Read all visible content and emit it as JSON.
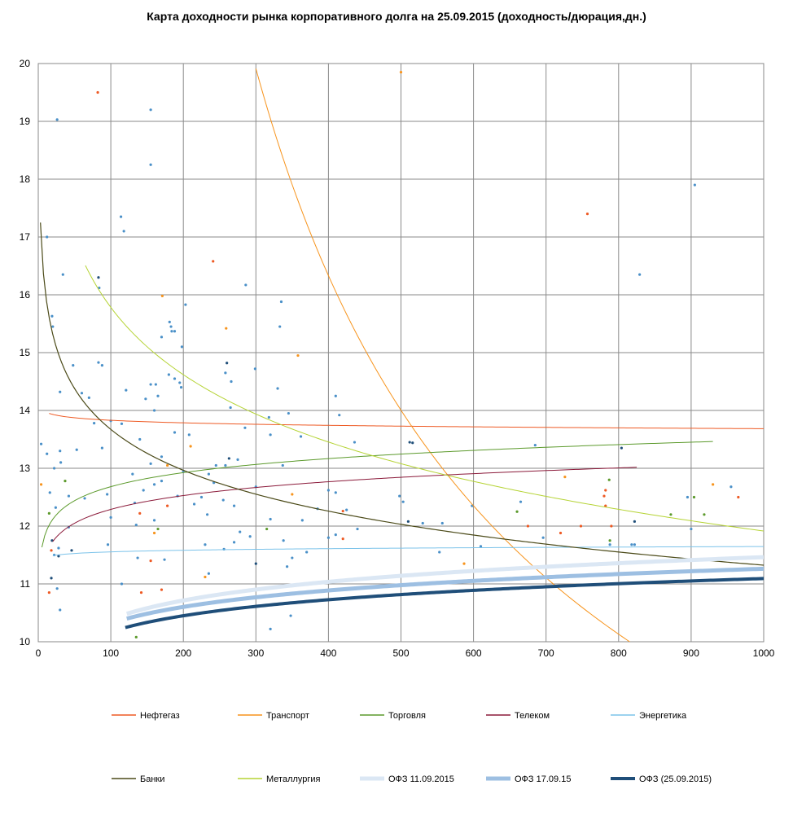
{
  "chart_data": {
    "type": "scatter",
    "title": "Карта доходности рынка корпоративного долга на 25.09.2015 (доходность/дюрация,дн.)",
    "xlabel": "",
    "ylabel": "",
    "xlim": [
      0,
      1000
    ],
    "ylim": [
      10,
      20
    ],
    "x_ticks": [
      0,
      100,
      200,
      300,
      400,
      500,
      600,
      700,
      800,
      900,
      1000
    ],
    "y_ticks": [
      10,
      11,
      12,
      13,
      14,
      15,
      16,
      17,
      18,
      19,
      20
    ],
    "grid": true,
    "legend_position": "bottom",
    "series": [
      {
        "name": "Нефтегаз",
        "color": "#ee5a24",
        "width": 1,
        "trend": "log",
        "x_range": [
          15,
          1000
        ],
        "a": 14.12,
        "b": -0.063
      },
      {
        "name": "Транспорт",
        "color": "#f7941d",
        "width": 1,
        "trend": "power",
        "x_range": [
          300,
          1000
        ],
        "a": 1013.6,
        "b": -0.689
      },
      {
        "name": "Торговля",
        "color": "#5c9a2c",
        "width": 1,
        "trend": "log",
        "x_range": [
          5,
          930
        ],
        "a": 11.07,
        "b": 0.35
      },
      {
        "name": "Телеком",
        "color": "#8b1a3a",
        "width": 1,
        "trend": "log",
        "x_range": [
          20,
          825
        ],
        "a": 10.7,
        "b": 0.345
      },
      {
        "name": "Энергетика",
        "color": "#7cc3ea",
        "width": 1,
        "trend": "log",
        "x_range": [
          20,
          1000
        ],
        "a": 11.37,
        "b": 0.04
      },
      {
        "name": "Банки",
        "color": "#4b4a18",
        "width": 1.2,
        "trend": "log",
        "x_range": [
          3,
          1000
        ],
        "a": 18.37,
        "b": -1.02
      },
      {
        "name": "Металлургия",
        "color": "#b5d334",
        "width": 1,
        "trend": "log",
        "x_range": [
          65,
          1000
        ],
        "a": 23.52,
        "b": -1.68
      },
      {
        "name": "ОФЗ 11.09.2015",
        "color": "#dbe7f4",
        "width": 5,
        "trend": "log",
        "x_range": [
          122,
          1000
        ],
        "a": 8.25,
        "b": 0.465
      },
      {
        "name": "ОФЗ 17.09.15",
        "color": "#9dbfe2",
        "width": 5,
        "trend": "log",
        "x_range": [
          122,
          1000
        ],
        "a": 8.43,
        "b": 0.41
      },
      {
        "name": "ОФЗ (25.09.2015)",
        "color": "#1f4e79",
        "width": 4,
        "trend": "log",
        "x_range": [
          120,
          1000
        ],
        "a": 8.33,
        "b": 0.4
      }
    ],
    "points": [
      {
        "x": 82,
        "y": 19.5,
        "color": "#ee5a24"
      },
      {
        "x": 500,
        "y": 19.85,
        "color": "#f7941d"
      },
      {
        "x": 26,
        "y": 19.03,
        "color": "#4a90c8"
      },
      {
        "x": 155,
        "y": 19.2,
        "color": "#4a90c8"
      },
      {
        "x": 155,
        "y": 18.25,
        "color": "#4a90c8"
      },
      {
        "x": 905,
        "y": 17.9,
        "color": "#4a90c8"
      },
      {
        "x": 757,
        "y": 17.4,
        "color": "#ee5a24"
      },
      {
        "x": 114,
        "y": 17.35,
        "color": "#4a90c8"
      },
      {
        "x": 118,
        "y": 17.1,
        "color": "#4a90c8"
      },
      {
        "x": 12,
        "y": 17.0,
        "color": "#4a90c8"
      },
      {
        "x": 241,
        "y": 16.58,
        "color": "#ee5a24"
      },
      {
        "x": 34,
        "y": 16.35,
        "color": "#4a90c8"
      },
      {
        "x": 83,
        "y": 16.3,
        "color": "#1f4e79"
      },
      {
        "x": 829,
        "y": 16.35,
        "color": "#4a90c8"
      },
      {
        "x": 286,
        "y": 16.17,
        "color": "#4a90c8"
      },
      {
        "x": 84,
        "y": 16.12,
        "color": "#4a90c8"
      },
      {
        "x": 171,
        "y": 15.98,
        "color": "#f7941d"
      },
      {
        "x": 335,
        "y": 15.88,
        "color": "#4a90c8"
      },
      {
        "x": 203,
        "y": 15.83,
        "color": "#4a90c8"
      },
      {
        "x": 19,
        "y": 15.63,
        "color": "#4a90c8"
      },
      {
        "x": 20,
        "y": 15.45,
        "color": "#4a90c8"
      },
      {
        "x": 181,
        "y": 15.53,
        "color": "#4a90c8"
      },
      {
        "x": 183,
        "y": 15.45,
        "color": "#4a90c8"
      },
      {
        "x": 333,
        "y": 15.45,
        "color": "#4a90c8"
      },
      {
        "x": 259,
        "y": 15.42,
        "color": "#f7941d"
      },
      {
        "x": 184,
        "y": 15.37,
        "color": "#4a90c8"
      },
      {
        "x": 188,
        "y": 15.37,
        "color": "#4a90c8"
      },
      {
        "x": 170,
        "y": 15.27,
        "color": "#4a90c8"
      },
      {
        "x": 198,
        "y": 15.1,
        "color": "#4a90c8"
      },
      {
        "x": 358,
        "y": 14.95,
        "color": "#f7941d"
      },
      {
        "x": 83,
        "y": 14.83,
        "color": "#4a90c8"
      },
      {
        "x": 88,
        "y": 14.78,
        "color": "#4a90c8"
      },
      {
        "x": 260,
        "y": 14.82,
        "color": "#1f4e79"
      },
      {
        "x": 48,
        "y": 14.78,
        "color": "#4a90c8"
      },
      {
        "x": 299,
        "y": 14.72,
        "color": "#4a90c8"
      },
      {
        "x": 258,
        "y": 14.65,
        "color": "#4a90c8"
      },
      {
        "x": 180,
        "y": 14.62,
        "color": "#4a90c8"
      },
      {
        "x": 188,
        "y": 14.55,
        "color": "#4a90c8"
      },
      {
        "x": 195,
        "y": 14.48,
        "color": "#4a90c8"
      },
      {
        "x": 155,
        "y": 14.45,
        "color": "#4a90c8"
      },
      {
        "x": 162,
        "y": 14.45,
        "color": "#4a90c8"
      },
      {
        "x": 266,
        "y": 14.5,
        "color": "#4a90c8"
      },
      {
        "x": 197,
        "y": 14.4,
        "color": "#4a90c8"
      },
      {
        "x": 121,
        "y": 14.35,
        "color": "#4a90c8"
      },
      {
        "x": 30,
        "y": 14.32,
        "color": "#4a90c8"
      },
      {
        "x": 60,
        "y": 14.3,
        "color": "#4a90c8"
      },
      {
        "x": 330,
        "y": 14.38,
        "color": "#4a90c8"
      },
      {
        "x": 165,
        "y": 14.25,
        "color": "#4a90c8"
      },
      {
        "x": 410,
        "y": 14.25,
        "color": "#4a90c8"
      },
      {
        "x": 70,
        "y": 14.22,
        "color": "#4a90c8"
      },
      {
        "x": 148,
        "y": 14.2,
        "color": "#4a90c8"
      },
      {
        "x": 265,
        "y": 14.05,
        "color": "#4a90c8"
      },
      {
        "x": 160,
        "y": 14.0,
        "color": "#4a90c8"
      },
      {
        "x": 345,
        "y": 13.95,
        "color": "#4a90c8"
      },
      {
        "x": 415,
        "y": 13.92,
        "color": "#4a90c8"
      },
      {
        "x": 318,
        "y": 13.88,
        "color": "#4a90c8"
      },
      {
        "x": 100,
        "y": 13.82,
        "color": "#4a90c8"
      },
      {
        "x": 115,
        "y": 13.77,
        "color": "#4a90c8"
      },
      {
        "x": 77,
        "y": 13.78,
        "color": "#4a90c8"
      },
      {
        "x": 285,
        "y": 13.7,
        "color": "#4a90c8"
      },
      {
        "x": 188,
        "y": 13.62,
        "color": "#4a90c8"
      },
      {
        "x": 208,
        "y": 13.58,
        "color": "#4a90c8"
      },
      {
        "x": 320,
        "y": 13.58,
        "color": "#4a90c8"
      },
      {
        "x": 362,
        "y": 13.55,
        "color": "#4a90c8"
      },
      {
        "x": 140,
        "y": 13.5,
        "color": "#4a90c8"
      },
      {
        "x": 512,
        "y": 13.45,
        "color": "#1f4e79"
      },
      {
        "x": 516,
        "y": 13.44,
        "color": "#1f4e79"
      },
      {
        "x": 436,
        "y": 13.45,
        "color": "#4a90c8"
      },
      {
        "x": 4,
        "y": 13.42,
        "color": "#4a90c8"
      },
      {
        "x": 210,
        "y": 13.38,
        "color": "#f7941d"
      },
      {
        "x": 685,
        "y": 13.4,
        "color": "#4a90c8"
      },
      {
        "x": 804,
        "y": 13.35,
        "color": "#1f4e79"
      },
      {
        "x": 88,
        "y": 13.35,
        "color": "#4a90c8"
      },
      {
        "x": 53,
        "y": 13.32,
        "color": "#4a90c8"
      },
      {
        "x": 30,
        "y": 13.3,
        "color": "#4a90c8"
      },
      {
        "x": 12,
        "y": 13.25,
        "color": "#4a90c8"
      },
      {
        "x": 170,
        "y": 13.2,
        "color": "#4a90c8"
      },
      {
        "x": 263,
        "y": 13.17,
        "color": "#1f4e79"
      },
      {
        "x": 275,
        "y": 13.15,
        "color": "#4a90c8"
      },
      {
        "x": 31,
        "y": 13.1,
        "color": "#4a90c8"
      },
      {
        "x": 155,
        "y": 13.08,
        "color": "#4a90c8"
      },
      {
        "x": 178,
        "y": 13.05,
        "color": "#f7941d"
      },
      {
        "x": 245,
        "y": 13.05,
        "color": "#4a90c8"
      },
      {
        "x": 258,
        "y": 13.05,
        "color": "#4a90c8"
      },
      {
        "x": 337,
        "y": 13.05,
        "color": "#4a90c8"
      },
      {
        "x": 22,
        "y": 13.0,
        "color": "#4a90c8"
      },
      {
        "x": 200,
        "y": 12.95,
        "color": "#4a90c8"
      },
      {
        "x": 130,
        "y": 12.9,
        "color": "#4a90c8"
      },
      {
        "x": 235,
        "y": 12.9,
        "color": "#4a90c8"
      },
      {
        "x": 726,
        "y": 12.85,
        "color": "#f7941d"
      },
      {
        "x": 787,
        "y": 12.8,
        "color": "#5c9a2c"
      },
      {
        "x": 37,
        "y": 12.78,
        "color": "#5c9a2c"
      },
      {
        "x": 170,
        "y": 12.78,
        "color": "#4a90c8"
      },
      {
        "x": 242,
        "y": 12.75,
        "color": "#4a90c8"
      },
      {
        "x": 160,
        "y": 12.72,
        "color": "#4a90c8"
      },
      {
        "x": 930,
        "y": 12.72,
        "color": "#f7941d"
      },
      {
        "x": 4,
        "y": 12.72,
        "color": "#f7941d"
      },
      {
        "x": 955,
        "y": 12.68,
        "color": "#4a90c8"
      },
      {
        "x": 300,
        "y": 12.68,
        "color": "#4a90c8"
      },
      {
        "x": 782,
        "y": 12.62,
        "color": "#ee5a24"
      },
      {
        "x": 145,
        "y": 12.62,
        "color": "#4a90c8"
      },
      {
        "x": 400,
        "y": 12.62,
        "color": "#4a90c8"
      },
      {
        "x": 410,
        "y": 12.58,
        "color": "#4a90c8"
      },
      {
        "x": 16,
        "y": 12.58,
        "color": "#4a90c8"
      },
      {
        "x": 95,
        "y": 12.55,
        "color": "#4a90c8"
      },
      {
        "x": 350,
        "y": 12.55,
        "color": "#f7941d"
      },
      {
        "x": 42,
        "y": 12.52,
        "color": "#4a90c8"
      },
      {
        "x": 192,
        "y": 12.52,
        "color": "#4a90c8"
      },
      {
        "x": 225,
        "y": 12.5,
        "color": "#4a90c8"
      },
      {
        "x": 498,
        "y": 12.52,
        "color": "#4a90c8"
      },
      {
        "x": 895,
        "y": 12.5,
        "color": "#4a90c8"
      },
      {
        "x": 904,
        "y": 12.5,
        "color": "#5c9a2c"
      },
      {
        "x": 965,
        "y": 12.5,
        "color": "#ee5a24"
      },
      {
        "x": 780,
        "y": 12.52,
        "color": "#ee5a24"
      },
      {
        "x": 64,
        "y": 12.48,
        "color": "#4a90c8"
      },
      {
        "x": 255,
        "y": 12.45,
        "color": "#4a90c8"
      },
      {
        "x": 503,
        "y": 12.42,
        "color": "#4a90c8"
      },
      {
        "x": 665,
        "y": 12.42,
        "color": "#4a90c8"
      },
      {
        "x": 782,
        "y": 12.35,
        "color": "#ee5a24"
      },
      {
        "x": 133,
        "y": 12.4,
        "color": "#4a90c8"
      },
      {
        "x": 178,
        "y": 12.35,
        "color": "#ee5a24"
      },
      {
        "x": 215,
        "y": 12.38,
        "color": "#4a90c8"
      },
      {
        "x": 270,
        "y": 12.35,
        "color": "#4a90c8"
      },
      {
        "x": 598,
        "y": 12.35,
        "color": "#4a90c8"
      },
      {
        "x": 24,
        "y": 12.32,
        "color": "#4a90c8"
      },
      {
        "x": 385,
        "y": 12.3,
        "color": "#4a90c8"
      },
      {
        "x": 425,
        "y": 12.28,
        "color": "#4a90c8"
      },
      {
        "x": 420,
        "y": 12.26,
        "color": "#ee5a24"
      },
      {
        "x": 660,
        "y": 12.25,
        "color": "#5c9a2c"
      },
      {
        "x": 15,
        "y": 12.22,
        "color": "#5c9a2c"
      },
      {
        "x": 140,
        "y": 12.22,
        "color": "#ee5a24"
      },
      {
        "x": 233,
        "y": 12.2,
        "color": "#4a90c8"
      },
      {
        "x": 872,
        "y": 12.2,
        "color": "#5c9a2c"
      },
      {
        "x": 918,
        "y": 12.2,
        "color": "#5c9a2c"
      },
      {
        "x": 100,
        "y": 12.15,
        "color": "#4a90c8"
      },
      {
        "x": 160,
        "y": 12.1,
        "color": "#4a90c8"
      },
      {
        "x": 320,
        "y": 12.12,
        "color": "#4a90c8"
      },
      {
        "x": 364,
        "y": 12.1,
        "color": "#4a90c8"
      },
      {
        "x": 510,
        "y": 12.08,
        "color": "#1f4e79"
      },
      {
        "x": 822,
        "y": 12.08,
        "color": "#1f4e79"
      },
      {
        "x": 530,
        "y": 12.05,
        "color": "#4a90c8"
      },
      {
        "x": 557,
        "y": 12.05,
        "color": "#4a90c8"
      },
      {
        "x": 135,
        "y": 12.02,
        "color": "#4a90c8"
      },
      {
        "x": 748,
        "y": 12.0,
        "color": "#ee5a24"
      },
      {
        "x": 790,
        "y": 12.0,
        "color": "#ee5a24"
      },
      {
        "x": 675,
        "y": 12.0,
        "color": "#ee5a24"
      },
      {
        "x": 42,
        "y": 11.98,
        "color": "#4a90c8"
      },
      {
        "x": 165,
        "y": 11.95,
        "color": "#5c9a2c"
      },
      {
        "x": 315,
        "y": 11.95,
        "color": "#5c9a2c"
      },
      {
        "x": 440,
        "y": 11.95,
        "color": "#4a90c8"
      },
      {
        "x": 900,
        "y": 11.95,
        "color": "#4a90c8"
      },
      {
        "x": 160,
        "y": 11.88,
        "color": "#f7941d"
      },
      {
        "x": 278,
        "y": 11.9,
        "color": "#4a90c8"
      },
      {
        "x": 410,
        "y": 11.85,
        "color": "#4a90c8"
      },
      {
        "x": 720,
        "y": 11.88,
        "color": "#ee5a24"
      },
      {
        "x": 292,
        "y": 11.82,
        "color": "#4a90c8"
      },
      {
        "x": 400,
        "y": 11.8,
        "color": "#4a90c8"
      },
      {
        "x": 420,
        "y": 11.78,
        "color": "#ee5a24"
      },
      {
        "x": 696,
        "y": 11.8,
        "color": "#4a90c8"
      },
      {
        "x": 19,
        "y": 11.75,
        "color": "#1f4e79"
      },
      {
        "x": 338,
        "y": 11.75,
        "color": "#4a90c8"
      },
      {
        "x": 270,
        "y": 11.72,
        "color": "#4a90c8"
      },
      {
        "x": 788,
        "y": 11.75,
        "color": "#5c9a2c"
      },
      {
        "x": 96,
        "y": 11.68,
        "color": "#4a90c8"
      },
      {
        "x": 230,
        "y": 11.68,
        "color": "#4a90c8"
      },
      {
        "x": 818,
        "y": 11.68,
        "color": "#4a90c8"
      },
      {
        "x": 822,
        "y": 11.68,
        "color": "#4a90c8"
      },
      {
        "x": 788,
        "y": 11.68,
        "color": "#4a90c8"
      },
      {
        "x": 610,
        "y": 11.65,
        "color": "#4a90c8"
      },
      {
        "x": 28,
        "y": 11.62,
        "color": "#4a90c8"
      },
      {
        "x": 18,
        "y": 11.58,
        "color": "#ee5a24"
      },
      {
        "x": 46,
        "y": 11.58,
        "color": "#1f4e79"
      },
      {
        "x": 256,
        "y": 11.6,
        "color": "#4a90c8"
      },
      {
        "x": 553,
        "y": 11.55,
        "color": "#4a90c8"
      },
      {
        "x": 370,
        "y": 11.55,
        "color": "#4a90c8"
      },
      {
        "x": 22,
        "y": 11.5,
        "color": "#4a90c8"
      },
      {
        "x": 28,
        "y": 11.48,
        "color": "#1f4e79"
      },
      {
        "x": 350,
        "y": 11.45,
        "color": "#4a90c8"
      },
      {
        "x": 137,
        "y": 11.45,
        "color": "#4a90c8"
      },
      {
        "x": 155,
        "y": 11.4,
        "color": "#ee5a24"
      },
      {
        "x": 174,
        "y": 11.42,
        "color": "#4a90c8"
      },
      {
        "x": 587,
        "y": 11.35,
        "color": "#f7941d"
      },
      {
        "x": 300,
        "y": 11.35,
        "color": "#1f4e79"
      },
      {
        "x": 343,
        "y": 11.3,
        "color": "#4a90c8"
      },
      {
        "x": 235,
        "y": 11.18,
        "color": "#4a90c8"
      },
      {
        "x": 18,
        "y": 11.1,
        "color": "#1f4e79"
      },
      {
        "x": 230,
        "y": 11.12,
        "color": "#f7941d"
      },
      {
        "x": 115,
        "y": 11.0,
        "color": "#4a90c8"
      },
      {
        "x": 26,
        "y": 10.92,
        "color": "#4a90c8"
      },
      {
        "x": 170,
        "y": 10.9,
        "color": "#ee5a24"
      },
      {
        "x": 15,
        "y": 10.85,
        "color": "#ee5a24"
      },
      {
        "x": 142,
        "y": 10.85,
        "color": "#ee5a24"
      },
      {
        "x": 30,
        "y": 10.55,
        "color": "#4a90c8"
      },
      {
        "x": 348,
        "y": 10.45,
        "color": "#4a90c8"
      },
      {
        "x": 320,
        "y": 10.22,
        "color": "#4a90c8"
      },
      {
        "x": 135,
        "y": 10.08,
        "color": "#5c9a2c"
      }
    ]
  }
}
